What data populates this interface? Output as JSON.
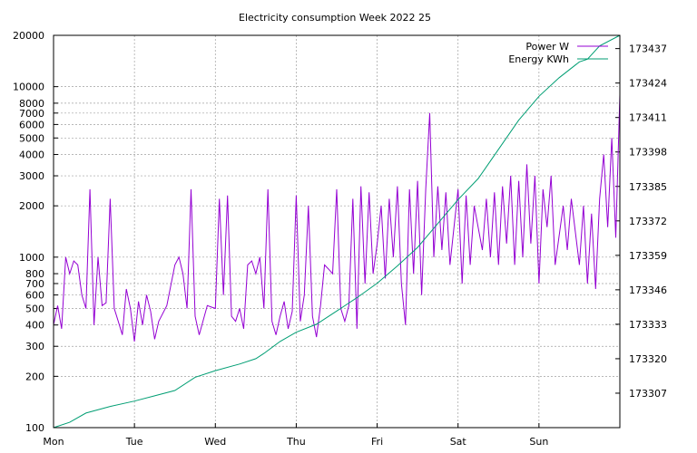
{
  "chart_data": {
    "type": "line",
    "title": "Electricity consumption Week 2022 25",
    "xlabel": "",
    "ylabel": "",
    "y_scale": "log",
    "ylim": [
      100,
      20000
    ],
    "y2lim": [
      173294,
      173442
    ],
    "grid": true,
    "legend_position": "top-right",
    "x_tick_labels": [
      "Mon",
      "Tue",
      "Wed",
      "Thu",
      "Fri",
      "Sat",
      "Sun"
    ],
    "y_ticks": [
      100,
      200,
      300,
      400,
      500,
      600,
      700,
      800,
      1000,
      2000,
      3000,
      4000,
      5000,
      6000,
      7000,
      8000,
      10000,
      20000
    ],
    "y2_ticks": [
      173307,
      173320,
      173333,
      173346,
      173359,
      173372,
      173385,
      173398,
      173411,
      173424,
      173437
    ],
    "series": [
      {
        "name": "Power W",
        "color": "#9400d3",
        "axis": "y1",
        "points": [
          [
            0.0,
            400
          ],
          [
            0.05,
            520
          ],
          [
            0.1,
            380
          ],
          [
            0.15,
            1000
          ],
          [
            0.2,
            800
          ],
          [
            0.25,
            950
          ],
          [
            0.3,
            900
          ],
          [
            0.35,
            600
          ],
          [
            0.4,
            500
          ],
          [
            0.45,
            2500
          ],
          [
            0.5,
            400
          ],
          [
            0.55,
            1000
          ],
          [
            0.6,
            520
          ],
          [
            0.65,
            540
          ],
          [
            0.7,
            2200
          ],
          [
            0.75,
            500
          ],
          [
            0.8,
            420
          ],
          [
            0.85,
            350
          ],
          [
            0.9,
            650
          ],
          [
            0.95,
            500
          ],
          [
            1.0,
            320
          ],
          [
            1.05,
            550
          ],
          [
            1.1,
            400
          ],
          [
            1.15,
            600
          ],
          [
            1.2,
            480
          ],
          [
            1.25,
            330
          ],
          [
            1.3,
            420
          ],
          [
            1.4,
            520
          ],
          [
            1.5,
            900
          ],
          [
            1.55,
            1000
          ],
          [
            1.6,
            800
          ],
          [
            1.65,
            500
          ],
          [
            1.7,
            2500
          ],
          [
            1.75,
            450
          ],
          [
            1.8,
            350
          ],
          [
            1.9,
            520
          ],
          [
            2.0,
            500
          ],
          [
            2.05,
            2200
          ],
          [
            2.1,
            600
          ],
          [
            2.15,
            2300
          ],
          [
            2.2,
            450
          ],
          [
            2.25,
            420
          ],
          [
            2.3,
            500
          ],
          [
            2.35,
            380
          ],
          [
            2.4,
            900
          ],
          [
            2.45,
            950
          ],
          [
            2.5,
            800
          ],
          [
            2.55,
            1000
          ],
          [
            2.6,
            500
          ],
          [
            2.65,
            2500
          ],
          [
            2.7,
            420
          ],
          [
            2.75,
            350
          ],
          [
            2.8,
            450
          ],
          [
            2.85,
            550
          ],
          [
            2.9,
            380
          ],
          [
            2.95,
            480
          ],
          [
            3.0,
            2300
          ],
          [
            3.05,
            420
          ],
          [
            3.1,
            600
          ],
          [
            3.15,
            2000
          ],
          [
            3.2,
            450
          ],
          [
            3.25,
            340
          ],
          [
            3.3,
            520
          ],
          [
            3.35,
            900
          ],
          [
            3.4,
            850
          ],
          [
            3.45,
            800
          ],
          [
            3.5,
            2500
          ],
          [
            3.55,
            500
          ],
          [
            3.6,
            420
          ],
          [
            3.65,
            520
          ],
          [
            3.7,
            2200
          ],
          [
            3.75,
            380
          ],
          [
            3.8,
            2600
          ],
          [
            3.85,
            700
          ],
          [
            3.9,
            2400
          ],
          [
            3.95,
            800
          ],
          [
            4.0,
            1200
          ],
          [
            4.05,
            2000
          ],
          [
            4.1,
            750
          ],
          [
            4.15,
            2200
          ],
          [
            4.2,
            1000
          ],
          [
            4.25,
            2600
          ],
          [
            4.3,
            700
          ],
          [
            4.35,
            400
          ],
          [
            4.4,
            2500
          ],
          [
            4.45,
            800
          ],
          [
            4.5,
            2800
          ],
          [
            4.55,
            600
          ],
          [
            4.6,
            2500
          ],
          [
            4.65,
            7000
          ],
          [
            4.7,
            1000
          ],
          [
            4.75,
            2600
          ],
          [
            4.8,
            1100
          ],
          [
            4.85,
            2400
          ],
          [
            4.9,
            900
          ],
          [
            5.0,
            2500
          ],
          [
            5.05,
            700
          ],
          [
            5.1,
            2300
          ],
          [
            5.15,
            900
          ],
          [
            5.2,
            2000
          ],
          [
            5.3,
            1100
          ],
          [
            5.35,
            2200
          ],
          [
            5.4,
            1000
          ],
          [
            5.45,
            2400
          ],
          [
            5.5,
            900
          ],
          [
            5.55,
            2600
          ],
          [
            5.6,
            1200
          ],
          [
            5.65,
            3000
          ],
          [
            5.7,
            900
          ],
          [
            5.75,
            2800
          ],
          [
            5.8,
            1000
          ],
          [
            5.85,
            3500
          ],
          [
            5.9,
            1200
          ],
          [
            5.95,
            3000
          ],
          [
            6.0,
            700
          ],
          [
            6.05,
            2500
          ],
          [
            6.1,
            1500
          ],
          [
            6.15,
            3000
          ],
          [
            6.2,
            900
          ],
          [
            6.3,
            2000
          ],
          [
            6.35,
            1100
          ],
          [
            6.4,
            2200
          ],
          [
            6.5,
            900
          ],
          [
            6.55,
            2000
          ],
          [
            6.6,
            700
          ],
          [
            6.65,
            1800
          ],
          [
            6.7,
            650
          ],
          [
            6.75,
            2200
          ],
          [
            6.8,
            4000
          ],
          [
            6.85,
            1500
          ],
          [
            6.9,
            5000
          ],
          [
            6.95,
            1300
          ],
          [
            7.0,
            9000
          ]
        ]
      },
      {
        "name": "Energy KWh",
        "color": "#009e73",
        "axis": "y2",
        "points": [
          [
            0.0,
            173294
          ],
          [
            0.2,
            173296
          ],
          [
            0.4,
            173299.5
          ],
          [
            0.7,
            173302
          ],
          [
            1.0,
            173304
          ],
          [
            1.25,
            173306
          ],
          [
            1.5,
            173308
          ],
          [
            1.75,
            173313
          ],
          [
            2.0,
            173315.5
          ],
          [
            2.3,
            173318
          ],
          [
            2.5,
            173320
          ],
          [
            2.6,
            173322
          ],
          [
            2.8,
            173326.5
          ],
          [
            3.0,
            173330
          ],
          [
            3.25,
            173333
          ],
          [
            3.5,
            173338
          ],
          [
            3.75,
            173343
          ],
          [
            4.0,
            173348.5
          ],
          [
            4.25,
            173355
          ],
          [
            4.5,
            173362
          ],
          [
            4.75,
            173371
          ],
          [
            5.0,
            173380
          ],
          [
            5.25,
            173388
          ],
          [
            5.5,
            173399
          ],
          [
            5.75,
            173410
          ],
          [
            6.0,
            173419
          ],
          [
            6.25,
            173426
          ],
          [
            6.5,
            173432
          ],
          [
            6.6,
            173433
          ],
          [
            6.75,
            173438
          ],
          [
            7.0,
            173442
          ]
        ]
      }
    ]
  }
}
